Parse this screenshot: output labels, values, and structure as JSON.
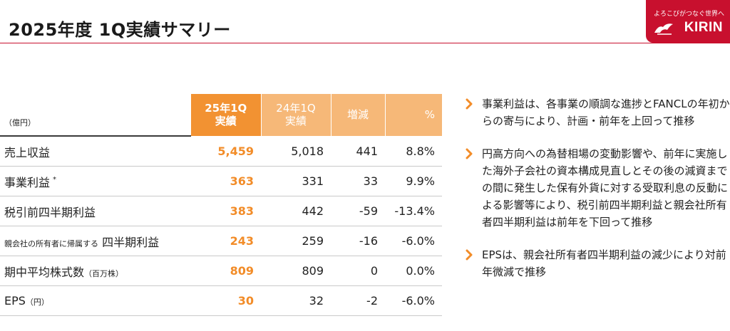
{
  "header": {
    "title": "2025年度 1Q実績サマリー",
    "logo_tagline": "よろこびがつなぐ世界へ",
    "logo_text": "KIRIN"
  },
  "colors": {
    "accent": "#f28c28",
    "header_current": "#f29232",
    "header_other": "#f6b878",
    "rule": "#c8102e",
    "logo_bg": "#c8102e"
  },
  "table": {
    "unit": "（億円）",
    "columns": {
      "current_line1": "25年1Q",
      "current_line2": "実績",
      "previous_line1": "24年1Q",
      "previous_line2": "実績",
      "diff": "増減",
      "pct": "%"
    },
    "rows": [
      {
        "label": "売上収益",
        "current": "5,459",
        "previous": "5,018",
        "diff": "441",
        "pct": "8.8%"
      },
      {
        "label": "事業利益",
        "note": "*",
        "current": "363",
        "previous": "331",
        "diff": "33",
        "pct": "9.9%"
      },
      {
        "label": "税引前四半期利益",
        "current": "383",
        "previous": "442",
        "diff": "-59",
        "pct": "-13.4%"
      },
      {
        "label_small": "親会社の所有者に帰属する",
        "label": "四半期利益",
        "current": "243",
        "previous": "259",
        "diff": "-16",
        "pct": "-6.0%"
      },
      {
        "label": "期中平均株式数",
        "label_suffix": "（百万株）",
        "current": "809",
        "previous": "809",
        "diff": "0",
        "pct": "0.0%"
      },
      {
        "label": "EPS",
        "label_suffix": "（円）",
        "current": "30",
        "previous": "32",
        "diff": "-2",
        "pct": "-6.0%"
      }
    ]
  },
  "bullets": [
    {
      "icon": "chevron-right-icon",
      "text": "事業利益は、各事業の順調な進捗とFANCLの年初からの寄与により、計画・前年を上回って推移"
    },
    {
      "icon": "chevron-right-icon",
      "text": "円高方向への為替相場の変動影響や、前年に実施した海外子会社の資本構成見直しとその後の減資までの間に発生した保有外貨に対する受取利息の反動による影響等により、税引前四半期利益と親会社所有者四半期利益は前年を下回って推移"
    },
    {
      "icon": "chevron-right-icon",
      "text": "EPSは、親会社所有者四半期利益の減少により対前年微減で推移"
    }
  ]
}
